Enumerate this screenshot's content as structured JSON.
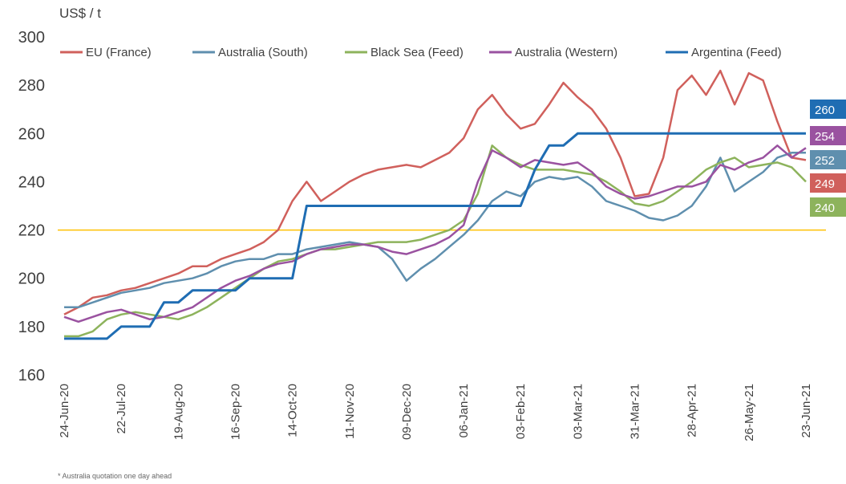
{
  "chart_data": {
    "type": "line",
    "ylabel": "US$ / t",
    "footnote": "* Australia quotation one day ahead",
    "categories": [
      "24-Jun-20",
      null,
      null,
      null,
      "22-Jul-20",
      null,
      null,
      null,
      "19-Aug-20",
      null,
      null,
      null,
      "16-Sep-20",
      null,
      null,
      null,
      "14-Oct-20",
      null,
      null,
      null,
      "11-Nov-20",
      null,
      null,
      null,
      "09-Dec-20",
      null,
      null,
      null,
      "06-Jan-21",
      null,
      null,
      null,
      "03-Feb-21",
      null,
      null,
      null,
      "03-Mar-21",
      null,
      null,
      null,
      "31-Mar-21",
      null,
      null,
      null,
      "28-Apr-21",
      null,
      null,
      null,
      "26-May-21",
      null,
      null,
      null,
      "23-Jun-21"
    ],
    "ylim": [
      160,
      300
    ],
    "yticks": [
      160,
      180,
      200,
      220,
      240,
      260,
      280,
      300
    ],
    "reference_line": {
      "value": 220,
      "color": "#ffc000"
    },
    "series": [
      {
        "name": "EU (France)",
        "color": "#d0605c",
        "values": [
          185,
          188,
          192,
          193,
          195,
          196,
          198,
          200,
          202,
          205,
          205,
          208,
          210,
          212,
          215,
          220,
          232,
          240,
          232,
          236,
          240,
          243,
          245,
          246,
          247,
          246,
          249,
          252,
          258,
          270,
          276,
          268,
          262,
          264,
          272,
          281,
          275,
          270,
          262,
          250,
          234,
          235,
          250,
          278,
          284,
          276,
          286,
          272,
          285,
          282,
          265,
          250,
          249
        ]
      },
      {
        "name": "Australia (South)",
        "color": "#5f8fae",
        "values": [
          188,
          188,
          190,
          192,
          194,
          195,
          196,
          198,
          199,
          200,
          202,
          205,
          207,
          208,
          208,
          210,
          210,
          212,
          213,
          214,
          215,
          214,
          213,
          208,
          199,
          204,
          208,
          213,
          218,
          224,
          232,
          236,
          234,
          240,
          242,
          241,
          242,
          238,
          232,
          230,
          228,
          225,
          224,
          226,
          230,
          238,
          250,
          236,
          240,
          244,
          250,
          252,
          252
        ]
      },
      {
        "name": "Black Sea (Feed)",
        "color": "#8db35c",
        "values": [
          176,
          176,
          178,
          183,
          185,
          186,
          185,
          184,
          183,
          185,
          188,
          192,
          196,
          200,
          204,
          207,
          208,
          210,
          212,
          212,
          213,
          214,
          215,
          215,
          215,
          216,
          218,
          220,
          224,
          235,
          255,
          250,
          247,
          245,
          245,
          245,
          244,
          243,
          240,
          236,
          231,
          230,
          232,
          236,
          240,
          245,
          248,
          250,
          246,
          247,
          248,
          246,
          240
        ]
      },
      {
        "name": "Australia (Western)",
        "color": "#9a52a0",
        "values": [
          184,
          182,
          184,
          186,
          187,
          185,
          183,
          184,
          186,
          188,
          192,
          196,
          199,
          201,
          204,
          206,
          207,
          210,
          212,
          213,
          214,
          214,
          213,
          211,
          210,
          212,
          214,
          217,
          222,
          240,
          253,
          250,
          246,
          249,
          248,
          247,
          248,
          244,
          238,
          235,
          233,
          234,
          236,
          238,
          238,
          240,
          247,
          245,
          248,
          250,
          255,
          250,
          254
        ]
      },
      {
        "name": "Argentina (Feed)",
        "color": "#1f6db3",
        "values": [
          175,
          175,
          175,
          175,
          180,
          180,
          180,
          190,
          190,
          195,
          195,
          195,
          195,
          200,
          200,
          200,
          200,
          230,
          230,
          230,
          230,
          230,
          230,
          230,
          230,
          230,
          230,
          230,
          230,
          230,
          230,
          230,
          230,
          245,
          255,
          255,
          260,
          260,
          260,
          260,
          260,
          260,
          260,
          260,
          260,
          260,
          260,
          260,
          260,
          260,
          260,
          260,
          260
        ]
      }
    ]
  }
}
